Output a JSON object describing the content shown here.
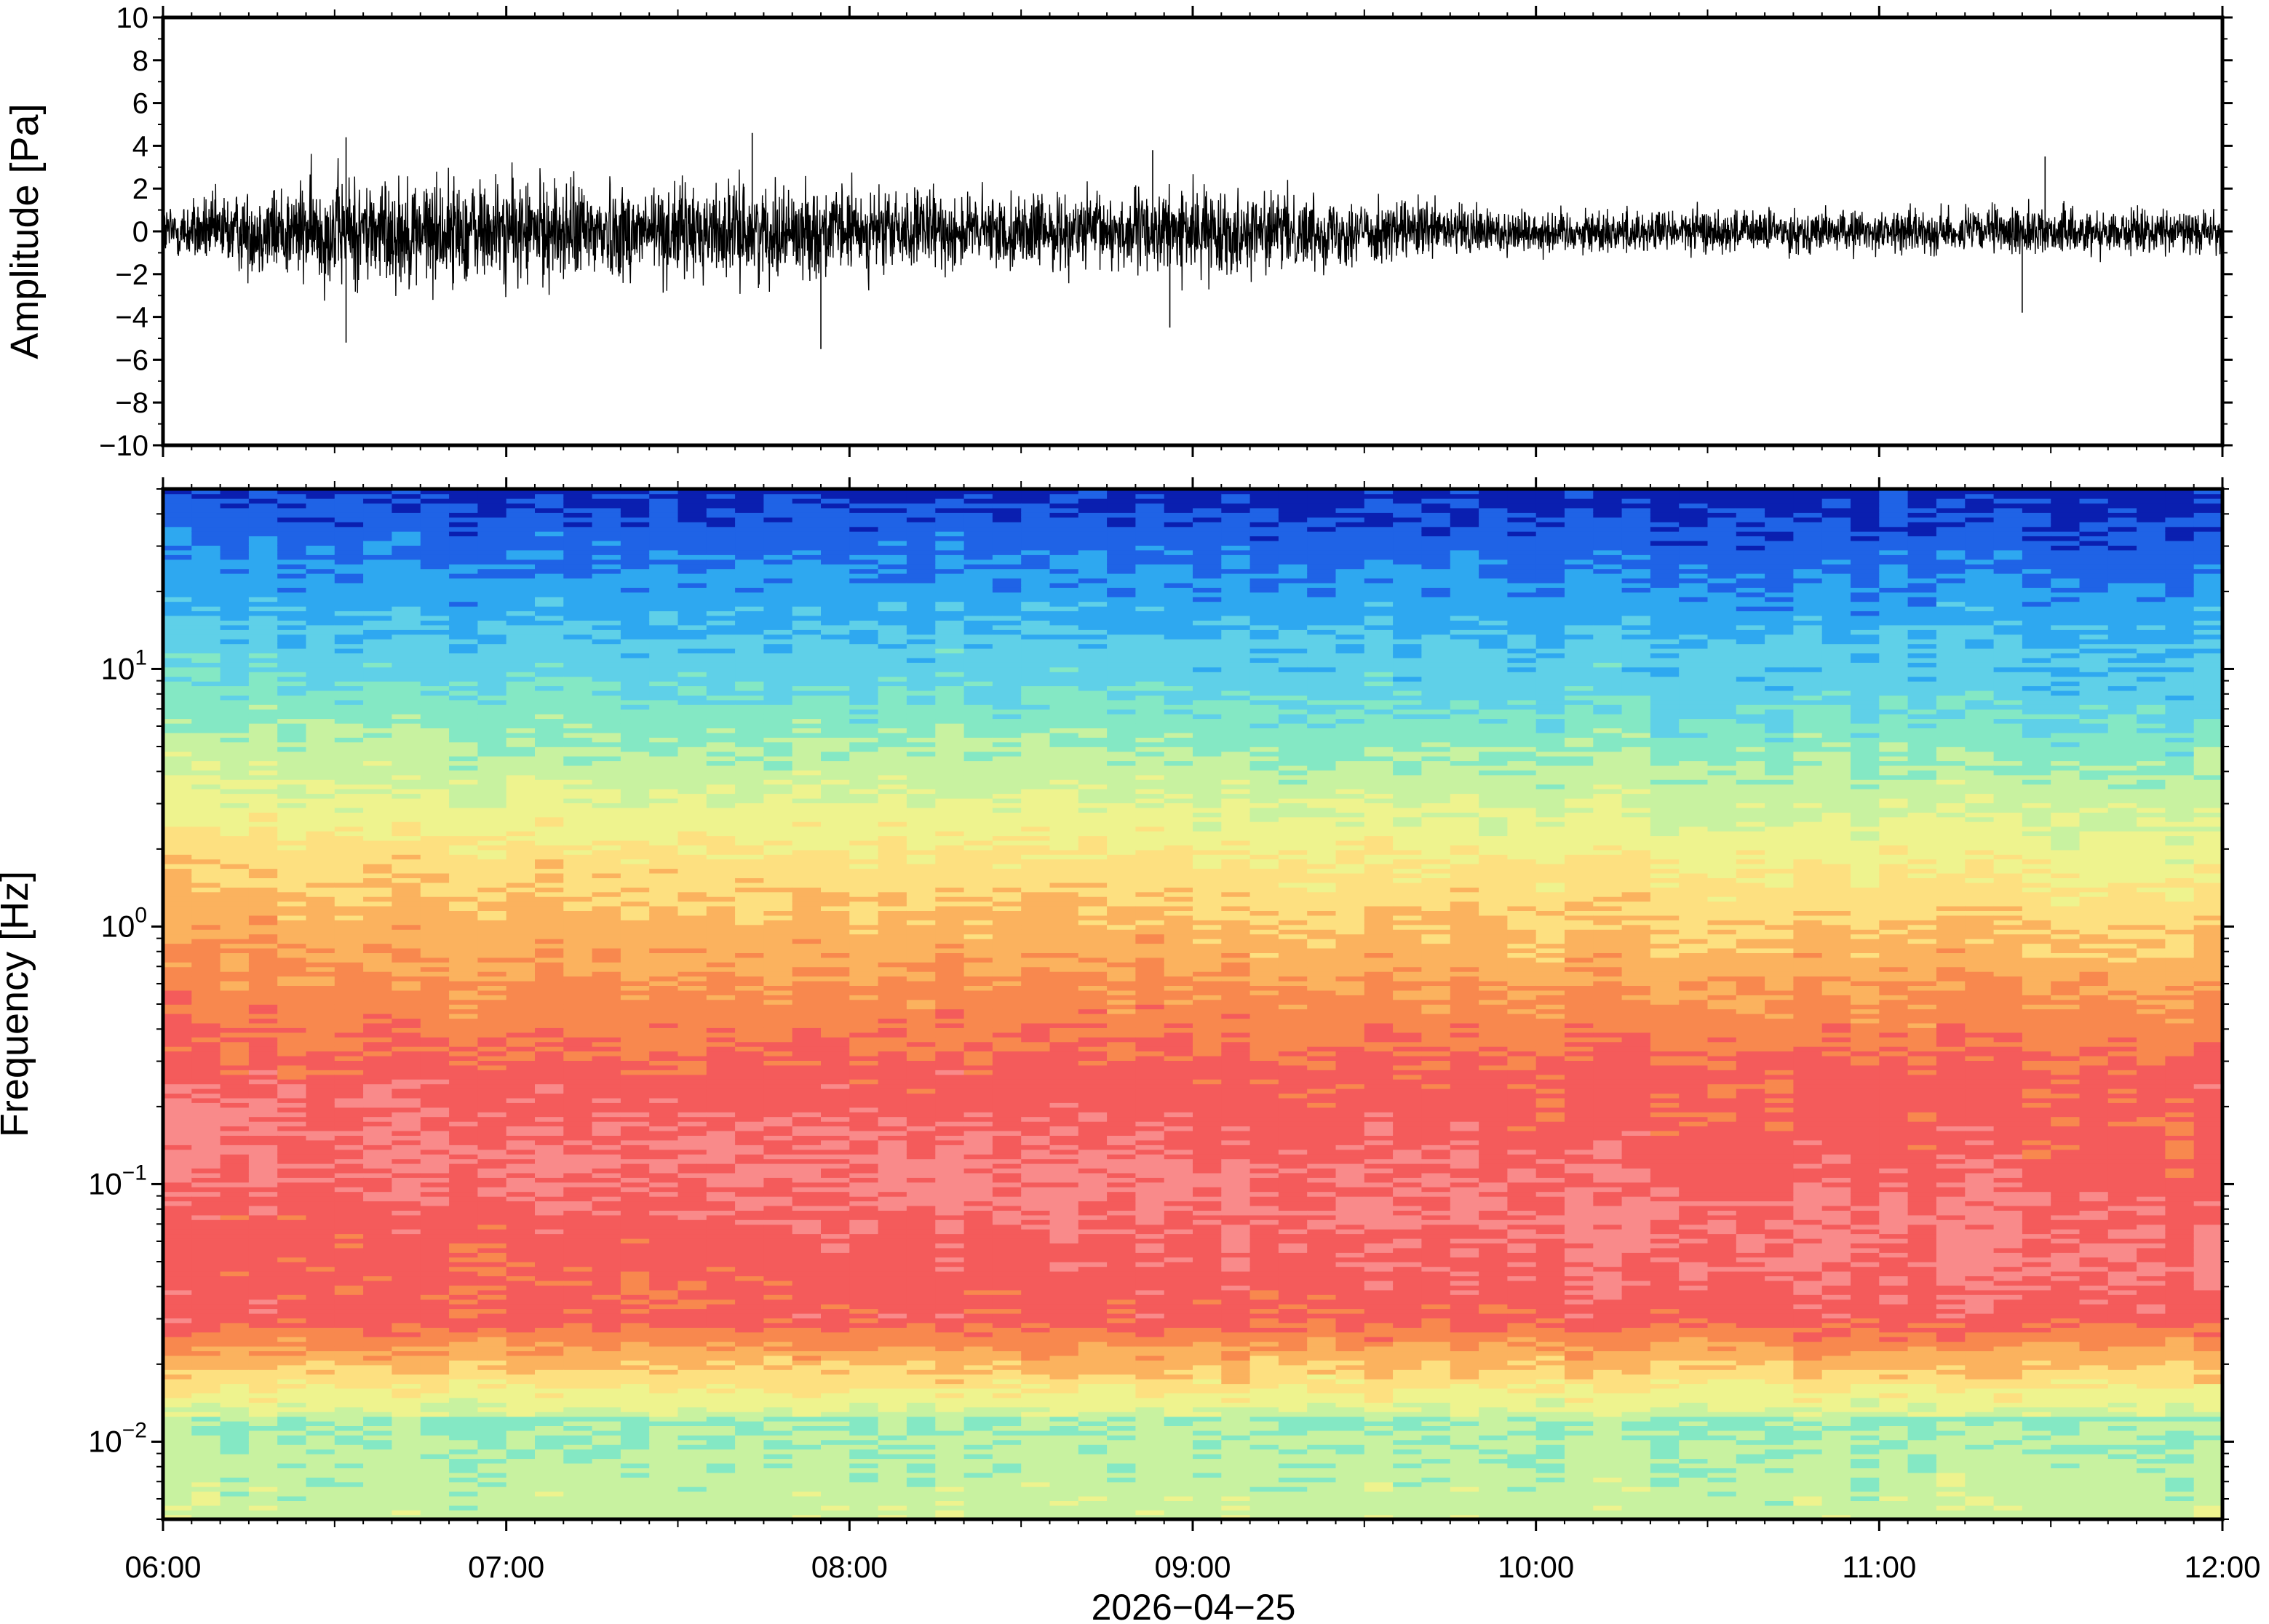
{
  "chart_data": [
    {
      "type": "line",
      "panel": "waveform",
      "ylabel": "Amplitude [Pa]",
      "ylim": [
        -10,
        10
      ],
      "yticks": [
        10,
        8,
        6,
        4,
        2,
        0,
        -2,
        -4,
        -6,
        -8,
        -10
      ],
      "ytick_labels": [
        "10",
        "8",
        "6",
        "4",
        "2",
        "0",
        "−2",
        "−4",
        "−6",
        "−8",
        "−10"
      ],
      "xlim": [
        "06:00",
        "12:00"
      ],
      "line_color": "#000000",
      "envelope": {
        "x": [
          "06:00",
          "06:30",
          "07:00",
          "07:30",
          "08:00",
          "08:30",
          "09:00",
          "09:30",
          "10:00",
          "10:30",
          "11:00",
          "11:30",
          "12:00"
        ],
        "upper": [
          1.6,
          3.2,
          3.0,
          2.6,
          2.4,
          2.0,
          2.4,
          1.8,
          1.2,
          1.2,
          1.1,
          1.3,
          1.1
        ],
        "lower": [
          -1.6,
          -3.4,
          -3.2,
          -3.0,
          -2.6,
          -2.2,
          -2.6,
          -2.0,
          -1.4,
          -1.4,
          -1.3,
          -1.5,
          -1.2
        ]
      },
      "peaks": [
        {
          "x": "06:32",
          "y": 4.4
        },
        {
          "x": "06:32",
          "y": -5.2
        },
        {
          "x": "07:43",
          "y": 4.6
        },
        {
          "x": "07:55",
          "y": -5.5
        },
        {
          "x": "08:53",
          "y": 3.8
        },
        {
          "x": "08:56",
          "y": -4.5
        },
        {
          "x": "11:29",
          "y": 3.5
        },
        {
          "x": "11:25",
          "y": -3.8
        }
      ]
    },
    {
      "type": "heatmap",
      "panel": "spectrogram",
      "ylabel": "Frequency [Hz]",
      "yscale": "log",
      "ylim": [
        0.005,
        50
      ],
      "ytick_labels": [
        {
          "base": "10",
          "exp": "1",
          "value": 10
        },
        {
          "base": "10",
          "exp": "0",
          "value": 1
        },
        {
          "base": "10",
          "exp": "−1",
          "value": 0.1
        },
        {
          "base": "10",
          "exp": "−2",
          "value": 0.01
        }
      ],
      "xlabel": "2026−04−25",
      "xlim": [
        "06:00",
        "12:00"
      ],
      "xtick_labels": [
        "06:00",
        "07:00",
        "08:00",
        "09:00",
        "10:00",
        "11:00",
        "12:00"
      ],
      "colormap": [
        "#0a1fb0",
        "#1f63e6",
        "#2ea8f0",
        "#5fd0e8",
        "#84e8c4",
        "#c8f2a0",
        "#eef38e",
        "#fde080",
        "#fbb25e",
        "#f8884e",
        "#f45b5b",
        "#f98a8a"
      ],
      "colorbar_shown": false,
      "grid": false
    }
  ]
}
